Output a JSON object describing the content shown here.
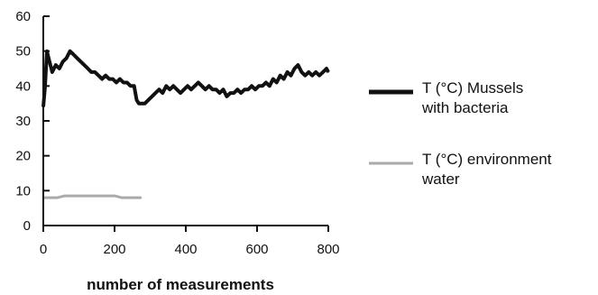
{
  "chart_data": {
    "type": "line",
    "title": "",
    "xlabel": "number of measurements",
    "ylabel": "",
    "xlim": [
      0,
      800
    ],
    "ylim": [
      0,
      60
    ],
    "x_ticks": [
      "0",
      "200",
      "400",
      "600",
      "800"
    ],
    "y_ticks": [
      "0",
      "10",
      "20",
      "30",
      "40",
      "50",
      "60"
    ],
    "grid": false,
    "legend_position": "right",
    "series": [
      {
        "name": "T (°C) Mussels with bacteria",
        "color": "#111111",
        "x": [
          0,
          5,
          10,
          15,
          25,
          35,
          45,
          55,
          65,
          75,
          85,
          95,
          105,
          115,
          125,
          135,
          145,
          155,
          165,
          175,
          185,
          195,
          205,
          215,
          225,
          235,
          245,
          255,
          262,
          268,
          275,
          285,
          295,
          305,
          315,
          325,
          335,
          345,
          355,
          365,
          375,
          385,
          395,
          405,
          415,
          425,
          435,
          445,
          455,
          465,
          475,
          485,
          495,
          505,
          515,
          525,
          535,
          545,
          555,
          565,
          575,
          585,
          595,
          605,
          615,
          625,
          635,
          645,
          655,
          665,
          675,
          685,
          695,
          705,
          715,
          725,
          735,
          745,
          755,
          765,
          775,
          785,
          795,
          800
        ],
        "values": [
          34,
          40,
          50,
          48,
          44,
          46,
          45,
          47,
          48,
          50,
          49,
          48,
          47,
          46,
          45,
          44,
          44,
          43,
          42,
          43,
          42,
          42,
          41,
          42,
          41,
          41,
          40,
          40,
          36,
          35,
          35,
          35,
          36,
          37,
          38,
          39,
          38,
          40,
          39,
          40,
          39,
          38,
          39,
          40,
          39,
          40,
          41,
          40,
          39,
          40,
          39,
          39,
          38,
          39,
          37,
          38,
          38,
          39,
          38,
          39,
          39,
          40,
          39,
          40,
          40,
          41,
          40,
          42,
          41,
          43,
          42,
          44,
          43,
          45,
          46,
          44,
          43,
          44,
          43,
          44,
          43,
          44,
          45,
          44
        ]
      },
      {
        "name": "T (°C) environment water",
        "color": "#aaaaaa",
        "x": [
          0,
          20,
          40,
          60,
          80,
          100,
          120,
          140,
          160,
          180,
          200,
          220,
          240,
          260,
          275
        ],
        "values": [
          8,
          8,
          8,
          8.5,
          8.5,
          8.5,
          8.5,
          8.5,
          8.5,
          8.5,
          8.5,
          8,
          8,
          8,
          8
        ]
      }
    ]
  }
}
